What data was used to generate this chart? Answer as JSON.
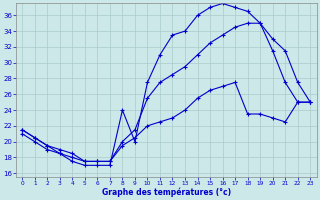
{
  "xlabel": "Graphe des températures (°c)",
  "bg_color": "#cce8e8",
  "line_color": "#0000cc",
  "grid_color": "#aacccc",
  "ylim": [
    15.5,
    37.5
  ],
  "xlim": [
    -0.5,
    23.5
  ],
  "yticks": [
    16,
    18,
    20,
    22,
    24,
    26,
    28,
    30,
    32,
    34,
    36
  ],
  "xticks": [
    0,
    1,
    2,
    3,
    4,
    5,
    6,
    7,
    8,
    9,
    10,
    11,
    12,
    13,
    14,
    15,
    16,
    17,
    18,
    19,
    20,
    21,
    22,
    23
  ],
  "line1_x": [
    0,
    1,
    2,
    3,
    4,
    5,
    6,
    7,
    8,
    9,
    10,
    11,
    12,
    13,
    14,
    15,
    16,
    17,
    18,
    19,
    20,
    21,
    22,
    23
  ],
  "line1_y": [
    21.0,
    20.0,
    19.0,
    18.5,
    17.5,
    17.0,
    17.0,
    17.0,
    24.0,
    20.0,
    27.5,
    31.0,
    33.5,
    34.0,
    36.0,
    37.0,
    37.5,
    37.0,
    36.5,
    35.0,
    31.5,
    27.5,
    25.0,
    25.0
  ],
  "line2_x": [
    0,
    1,
    2,
    3,
    4,
    5,
    6,
    7,
    8,
    9,
    10,
    11,
    12,
    13,
    14,
    15,
    16,
    17,
    18,
    19,
    20,
    21,
    22,
    23
  ],
  "line2_y": [
    21.5,
    20.5,
    19.5,
    18.5,
    18.0,
    17.5,
    17.5,
    17.5,
    20.0,
    21.5,
    25.5,
    27.5,
    28.5,
    29.5,
    31.0,
    32.5,
    33.5,
    34.5,
    35.0,
    35.0,
    33.0,
    31.5,
    27.5,
    25.0
  ],
  "line3_x": [
    0,
    1,
    2,
    3,
    4,
    5,
    6,
    7,
    8,
    9,
    10,
    11,
    12,
    13,
    14,
    15,
    16,
    17,
    18,
    19,
    20,
    21,
    22,
    23
  ],
  "line3_y": [
    21.5,
    20.5,
    19.5,
    19.0,
    18.5,
    17.5,
    17.5,
    17.5,
    19.5,
    20.5,
    22.0,
    22.5,
    23.0,
    24.0,
    25.5,
    26.5,
    27.0,
    27.5,
    23.5,
    23.5,
    23.0,
    22.5,
    25.0,
    25.0
  ]
}
